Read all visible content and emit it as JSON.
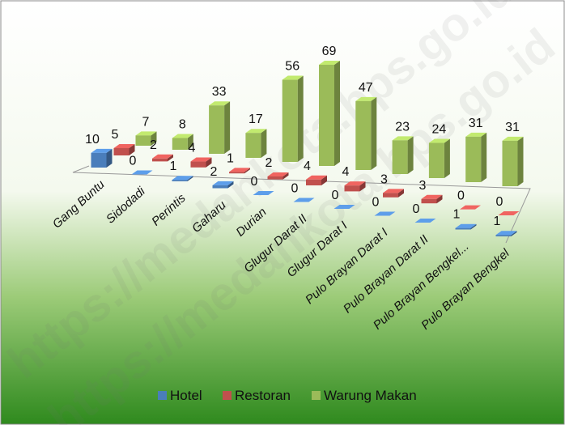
{
  "chart_data": {
    "type": "bar3d",
    "watermark": "https://medankota.bps.go.id",
    "categories": [
      "Gang Buntu",
      "Sidodadi",
      "Perintis",
      "Gaharu",
      "Durian",
      "Glugur Darat II",
      "Glugur Darat I",
      "Pulo Brayan Darat I",
      "Pulo Brayan Darat II",
      "Pulo Brayan Bengkel...",
      "Pulo Brayan Bengkel"
    ],
    "series": [
      {
        "name": "Hotel",
        "color": "#4a7ebb",
        "values": [
          10,
          0,
          1,
          2,
          0,
          0,
          0,
          0,
          0,
          1,
          1
        ]
      },
      {
        "name": "Restoran",
        "color": "#c0504d",
        "values": [
          5,
          2,
          4,
          1,
          2,
          4,
          4,
          3,
          3,
          0,
          0
        ]
      },
      {
        "name": "Warung Makan",
        "color": "#9bbb59",
        "values": [
          7,
          8,
          33,
          17,
          56,
          69,
          47,
          23,
          24,
          31,
          31
        ]
      }
    ],
    "legend": "bottom"
  }
}
